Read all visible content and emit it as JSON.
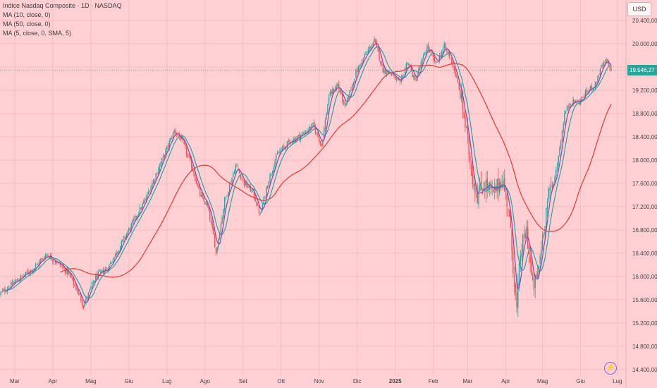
{
  "legend": {
    "title": "Indice Nasdaq Composite · 1D · NASDAQ",
    "ma1": "MA (10, close, 0)",
    "ma2": "MA (50, close, 0)",
    "ma3": "MA (5, close, 0, SMA, 5)"
  },
  "currency": "USD",
  "last_price_label": "19.546,27",
  "colors": {
    "background": "#ffd0d3",
    "up": "#26a69a",
    "down": "#ef5350",
    "ma10": "#26a69a",
    "ma50": "#e53935",
    "ma5": "#8e44ad"
  },
  "chart_data": {
    "type": "candlestick",
    "title": "Indice Nasdaq Composite · 1D · NASDAQ",
    "ylim": [
      14300,
      20750
    ],
    "y_ticks": [
      14400,
      14800,
      15200,
      15600,
      16000,
      16400,
      16800,
      17200,
      17600,
      18000,
      18400,
      18800,
      19200,
      19600,
      20000,
      20400
    ],
    "y_tick_labels": [
      "14.400,00",
      "14.800,00",
      "15.200,00",
      "15.600,00",
      "16.000,00",
      "16.400,00",
      "16.800,00",
      "17.200,00",
      "17.600,00",
      "18.000,00",
      "18.400,00",
      "18.800,00",
      "19.200,00",
      "19.600,00",
      "20.000,00",
      "20.400,00"
    ],
    "x_labels": [
      "Mar",
      "Apr",
      "Mag",
      "Giu",
      "Lug",
      "Ago",
      "Set",
      "Ott",
      "Nov",
      "Dic",
      "2025",
      "Feb",
      "Mar",
      "Apr",
      "Mag",
      "Giu",
      "Lug"
    ],
    "x_label_days": [
      12,
      43,
      74,
      105,
      136,
      167,
      198,
      229,
      260,
      291,
      322,
      353,
      381,
      412,
      442,
      473,
      503
    ],
    "x_range_days": [
      0,
      510
    ],
    "last_price": 19546.27,
    "anchors": [
      [
        0,
        15700
      ],
      [
        15,
        15950
      ],
      [
        28,
        16150
      ],
      [
        38,
        16380
      ],
      [
        46,
        16250
      ],
      [
        56,
        16050
      ],
      [
        63,
        15750
      ],
      [
        68,
        15500
      ],
      [
        78,
        16000
      ],
      [
        88,
        16150
      ],
      [
        96,
        16450
      ],
      [
        105,
        16800
      ],
      [
        118,
        17300
      ],
      [
        132,
        18000
      ],
      [
        142,
        18500
      ],
      [
        148,
        18350
      ],
      [
        156,
        17900
      ],
      [
        163,
        17400
      ],
      [
        169,
        17200
      ],
      [
        174,
        16700
      ],
      [
        176,
        16400
      ],
      [
        183,
        17300
      ],
      [
        192,
        17900
      ],
      [
        199,
        17600
      ],
      [
        206,
        17450
      ],
      [
        212,
        17050
      ],
      [
        218,
        17600
      ],
      [
        226,
        18100
      ],
      [
        235,
        18300
      ],
      [
        247,
        18450
      ],
      [
        255,
        18600
      ],
      [
        262,
        18250
      ],
      [
        268,
        19100
      ],
      [
        275,
        19300
      ],
      [
        281,
        18900
      ],
      [
        290,
        19500
      ],
      [
        296,
        19750
      ],
      [
        305,
        20050
      ],
      [
        312,
        19550
      ],
      [
        318,
        19500
      ],
      [
        326,
        19300
      ],
      [
        332,
        19700
      ],
      [
        338,
        19350
      ],
      [
        348,
        19950
      ],
      [
        355,
        19650
      ],
      [
        362,
        19950
      ],
      [
        368,
        19700
      ],
      [
        373,
        19300
      ],
      [
        377,
        18900
      ],
      [
        381,
        18300
      ],
      [
        385,
        17700
      ],
      [
        389,
        17400
      ],
      [
        395,
        17600
      ],
      [
        402,
        17400
      ],
      [
        409,
        17700
      ],
      [
        414,
        17200
      ],
      [
        418,
        16200
      ],
      [
        421,
        15400
      ],
      [
        424,
        16400
      ],
      [
        429,
        16800
      ],
      [
        434,
        15800
      ],
      [
        438,
        16000
      ],
      [
        442,
        16700
      ],
      [
        446,
        17300
      ],
      [
        452,
        17700
      ],
      [
        456,
        18200
      ],
      [
        460,
        18800
      ],
      [
        465,
        19000
      ],
      [
        472,
        19000
      ],
      [
        479,
        19200
      ],
      [
        485,
        19300
      ],
      [
        490,
        19600
      ],
      [
        494,
        19700
      ],
      [
        498,
        19550
      ]
    ]
  }
}
